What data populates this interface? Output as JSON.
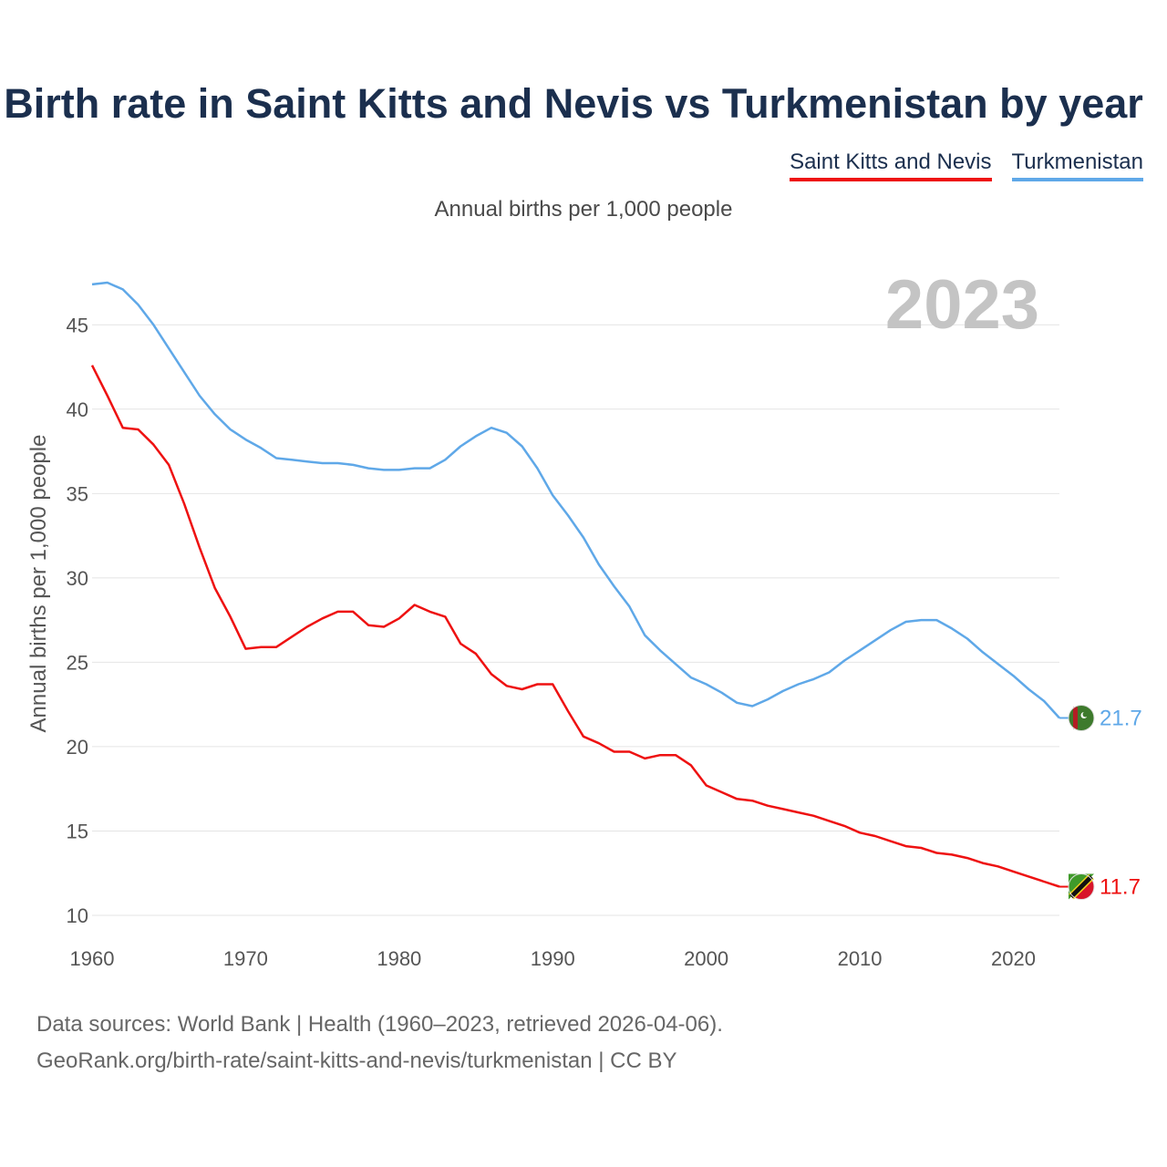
{
  "title": "Birth rate in Saint Kitts and Nevis vs Turkmenistan by year",
  "subtitle": "Annual births per 1,000 people",
  "year_label": "2023",
  "legend": [
    {
      "name": "Saint Kitts and Nevis",
      "color": "#ee1111"
    },
    {
      "name": "Turkmenistan",
      "color": "#5fa8e8"
    }
  ],
  "source_lines": [
    "Data sources: World Bank | Health (1960–2023, retrieved 2026-04-06).",
    "GeoRank.org/birth-rate/saint-kitts-and-nevis/turkmenistan | CC BY"
  ],
  "chart_data": {
    "type": "line",
    "title": "Birth rate in Saint Kitts and Nevis vs Turkmenistan by year",
    "xlabel": "",
    "ylabel": "Annual births per 1,000 people",
    "xlim": [
      1960,
      2023
    ],
    "ylim": [
      10,
      47.5
    ],
    "xticks": [
      1960,
      1970,
      1980,
      1990,
      2000,
      2010,
      2020
    ],
    "yticks": [
      10,
      15,
      20,
      25,
      30,
      35,
      40,
      45
    ],
    "grid": true,
    "x": [
      1960,
      1961,
      1962,
      1963,
      1964,
      1965,
      1966,
      1967,
      1968,
      1969,
      1970,
      1971,
      1972,
      1973,
      1974,
      1975,
      1976,
      1977,
      1978,
      1979,
      1980,
      1981,
      1982,
      1983,
      1984,
      1985,
      1986,
      1987,
      1988,
      1989,
      1990,
      1991,
      1992,
      1993,
      1994,
      1995,
      1996,
      1997,
      1998,
      1999,
      2000,
      2001,
      2002,
      2003,
      2004,
      2005,
      2006,
      2007,
      2008,
      2009,
      2010,
      2011,
      2012,
      2013,
      2014,
      2015,
      2016,
      2017,
      2018,
      2019,
      2020,
      2021,
      2022,
      2023
    ],
    "series": [
      {
        "name": "Saint Kitts and Nevis",
        "color": "#ee1111",
        "end_label": "11.7",
        "values": [
          42.6,
          40.8,
          38.9,
          38.8,
          37.9,
          36.7,
          34.4,
          31.8,
          29.4,
          27.7,
          25.8,
          25.9,
          25.9,
          26.5,
          27.1,
          27.6,
          28.0,
          28.0,
          27.2,
          27.1,
          27.6,
          28.4,
          28.0,
          27.7,
          26.1,
          25.5,
          24.3,
          23.6,
          23.4,
          23.7,
          23.7,
          22.1,
          20.6,
          20.2,
          19.7,
          19.7,
          19.3,
          19.5,
          19.5,
          18.9,
          17.7,
          17.3,
          16.9,
          16.8,
          16.5,
          16.3,
          16.1,
          15.9,
          15.6,
          15.3,
          14.9,
          14.7,
          14.4,
          14.1,
          14.0,
          13.7,
          13.6,
          13.4,
          13.1,
          12.9,
          12.6,
          12.3,
          12.0,
          11.7
        ]
      },
      {
        "name": "Turkmenistan",
        "color": "#5fa8e8",
        "end_label": "21.7",
        "values": [
          47.4,
          47.5,
          47.1,
          46.2,
          45.0,
          43.6,
          42.2,
          40.8,
          39.7,
          38.8,
          38.2,
          37.7,
          37.1,
          37.0,
          36.9,
          36.8,
          36.8,
          36.7,
          36.5,
          36.4,
          36.4,
          36.5,
          36.5,
          37.0,
          37.8,
          38.4,
          38.9,
          38.6,
          37.8,
          36.5,
          34.9,
          33.7,
          32.4,
          30.8,
          29.5,
          28.3,
          26.6,
          25.7,
          24.9,
          24.1,
          23.7,
          23.2,
          22.6,
          22.4,
          22.8,
          23.3,
          23.7,
          24.0,
          24.4,
          25.1,
          25.7,
          26.3,
          26.9,
          27.4,
          27.5,
          27.5,
          27.0,
          26.4,
          25.6,
          24.9,
          24.2,
          23.4,
          22.7,
          21.7
        ]
      }
    ]
  }
}
